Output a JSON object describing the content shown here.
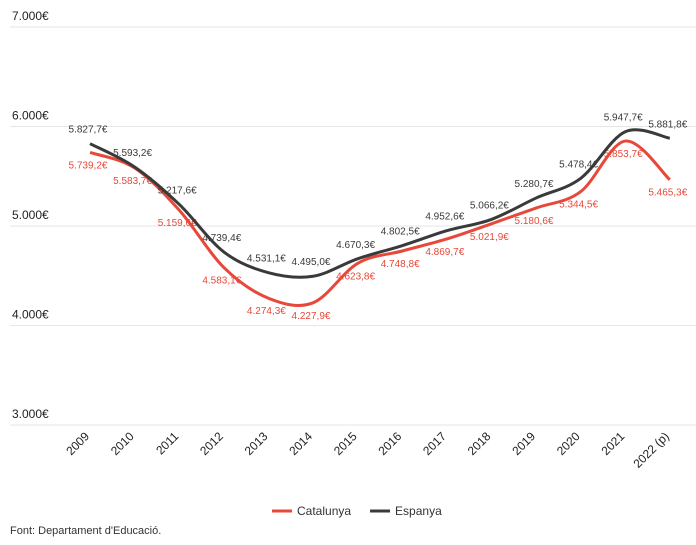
{
  "chart_data": {
    "type": "line",
    "categories": [
      "2009",
      "2010",
      "2011",
      "2012",
      "2013",
      "2014",
      "2015",
      "2016",
      "2017",
      "2018",
      "2019",
      "2020",
      "2021",
      "2022 (p)"
    ],
    "series": [
      {
        "name": "Catalunya",
        "color": "#e8483a",
        "values": [
          5739.2,
          5583.7,
          5159.6,
          4583.1,
          4274.3,
          4227.9,
          4623.8,
          4748.8,
          4869.7,
          5021.9,
          5180.6,
          5344.5,
          5853.7,
          5465.3
        ],
        "value_labels": [
          "5.739,2€",
          "5.583,7€",
          "5.159,6€",
          "4.583,1€",
          "4.274,3€",
          "4.227,9€",
          "4.623,8€",
          "4.748,8€",
          "4.869,7€",
          "5.021,9€",
          "5.180,6€",
          "5.344,5€",
          "5.853,7€",
          "5.465,3€"
        ]
      },
      {
        "name": "Espanya",
        "color": "#3a3a3a",
        "values": [
          5827.7,
          5593.2,
          5217.6,
          4739.4,
          4531.1,
          4495.0,
          4670.3,
          4802.5,
          4952.6,
          5066.2,
          5280.7,
          5478.4,
          5947.7,
          5881.8
        ],
        "value_labels": [
          "5.827,7€",
          "5.593,2€",
          "5.217,6€",
          "4.739,4€",
          "4.531,1€",
          "4.495,0€",
          "4.670,3€",
          "4.802,5€",
          "4.952,6€",
          "5.066,2€",
          "5.280,7€",
          "5.478,4€",
          "5.947,7€",
          "5.881,8€"
        ]
      }
    ],
    "ylim": [
      3000,
      7000
    ],
    "yticks": [
      {
        "value": 3000,
        "label": "3.000€"
      },
      {
        "value": 4000,
        "label": "4.000€"
      },
      {
        "value": 5000,
        "label": "5.000€"
      },
      {
        "value": 6000,
        "label": "6.000€"
      },
      {
        "value": 7000,
        "label": "7.000€"
      }
    ],
    "grid": true,
    "legend": "bottom",
    "source": "Font: Departament d'Educació."
  }
}
